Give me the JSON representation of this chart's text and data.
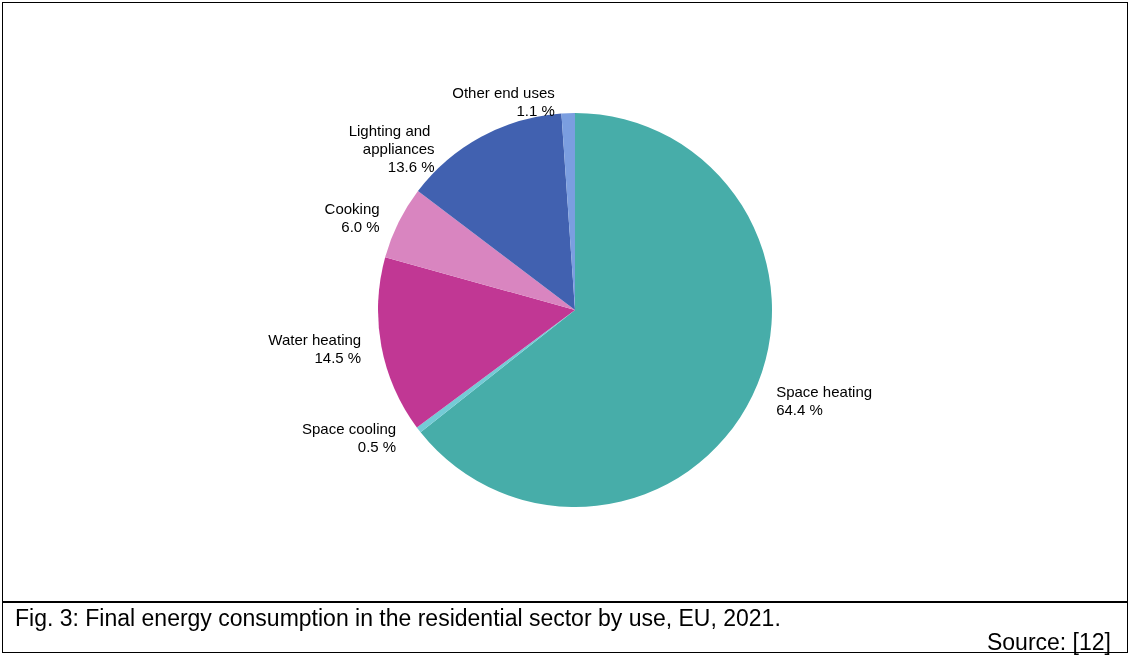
{
  "chart_data": {
    "type": "pie",
    "title": "Fig. 3:  Final energy consumption in the residential sector by use, EU, 2021.",
    "annotations": [
      "Source: [12]"
    ],
    "categories": [
      "Space heating",
      "Space cooling",
      "Water heating",
      "Cooking",
      "Lighting and appliances",
      "Other end uses"
    ],
    "values": [
      64.4,
      0.5,
      14.5,
      6.0,
      13.6,
      1.1
    ],
    "value_labels": [
      "64.4 %",
      "0.5 %",
      "14.5 %",
      "6.0 %",
      "13.6 %",
      "1.1 %"
    ],
    "colors": [
      "#47ada9",
      "#74cbd6",
      "#c13794",
      "#d985c0",
      "#4161b0",
      "#7b9ee0"
    ],
    "legend": false
  }
}
